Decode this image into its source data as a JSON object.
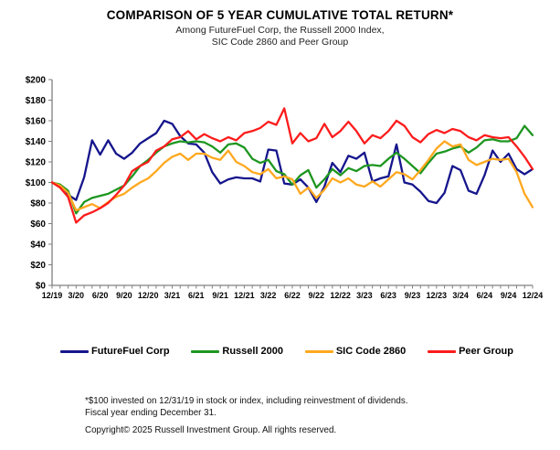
{
  "title": "COMPARISON OF 5 YEAR CUMULATIVE TOTAL RETURN*",
  "subtitle_line1": "Among FutureFuel Corp, the Russell 2000 Index,",
  "subtitle_line2": "SIC Code 2860 and Peer Group",
  "footnotes": {
    "line1": "*$100 invested on 12/31/19 in stock or index, including reinvestment of dividends.",
    "line2": "Fiscal year ending December 31.",
    "copyright": "Copyright© 2025 Russell Investment Group. All rights reserved."
  },
  "chart_data": {
    "type": "line",
    "title": "COMPARISON OF 5 YEAR CUMULATIVE TOTAL RETURN*",
    "x_tick_labels": [
      "12/19",
      "3/20",
      "6/20",
      "9/20",
      "12/20",
      "3/21",
      "6/21",
      "9/21",
      "12/21",
      "3/22",
      "6/22",
      "9/22",
      "12/22",
      "3/23",
      "6/23",
      "9/23",
      "12/23",
      "3/24",
      "6/24",
      "9/24",
      "12/24"
    ],
    "y_tick_labels": [
      "$200",
      "$180",
      "$160",
      "$140",
      "$120",
      "$100",
      "$80",
      "$60",
      "$40",
      "$20",
      "$0"
    ],
    "ylim": [
      0,
      200
    ],
    "y_tick_step": 20,
    "grid": false,
    "legend_position": "bottom",
    "x_resolution": "monthly",
    "points_per_series": 61,
    "axis_color": "#808080",
    "series": [
      {
        "name": "FutureFuel Corp",
        "color": "#15158C",
        "values": [
          100,
          96,
          88,
          83,
          105,
          141,
          127,
          141,
          128,
          123,
          129,
          138,
          143,
          148,
          160,
          157,
          145,
          138,
          137,
          129,
          110,
          99,
          103,
          105,
          104,
          104,
          101,
          132,
          131,
          99,
          98,
          103,
          95,
          81,
          96,
          119,
          110,
          126,
          123,
          129,
          101,
          104,
          106,
          137,
          100,
          98,
          91,
          82,
          80,
          90,
          116,
          112,
          92,
          89,
          107,
          131,
          120,
          128,
          113,
          108,
          113
        ]
      },
      {
        "name": "Russell 2000",
        "color": "#1E9620",
        "values": [
          100,
          98,
          92,
          70,
          81,
          85,
          87,
          89,
          93,
          97,
          106,
          116,
          122,
          129,
          135,
          138,
          140,
          139,
          140,
          139,
          135,
          129,
          137,
          138,
          134,
          123,
          119,
          122,
          111,
          108,
          98,
          107,
          112,
          95,
          103,
          113,
          107,
          114,
          111,
          116,
          117,
          116,
          123,
          129,
          123,
          116,
          109,
          119,
          128,
          130,
          133,
          135,
          129,
          134,
          141,
          142,
          140,
          140,
          143,
          155,
          146
        ]
      },
      {
        "name": "SIC Code 2860",
        "color": "#FFA81F",
        "values": [
          100,
          97,
          90,
          73,
          76,
          79,
          75,
          81,
          86,
          89,
          95,
          100,
          104,
          111,
          119,
          125,
          128,
          122,
          128,
          128,
          124,
          122,
          131,
          120,
          116,
          110,
          108,
          113,
          104,
          106,
          103,
          89,
          95,
          85,
          93,
          104,
          100,
          104,
          98,
          96,
          101,
          96,
          103,
          110,
          108,
          103,
          112,
          122,
          133,
          140,
          135,
          137,
          122,
          117,
          120,
          123,
          122,
          123,
          110,
          89,
          76
        ]
      },
      {
        "name": "Peer Group",
        "color": "#FC1C1C",
        "values": [
          100,
          95,
          86,
          61,
          68,
          71,
          75,
          80,
          88,
          97,
          111,
          116,
          120,
          131,
          135,
          142,
          144,
          150,
          142,
          147,
          143,
          140,
          144,
          141,
          148,
          150,
          153,
          159,
          156,
          172,
          138,
          148,
          140,
          143,
          157,
          144,
          150,
          159,
          150,
          138,
          146,
          143,
          150,
          160,
          155,
          144,
          139,
          147,
          151,
          148,
          152,
          150,
          144,
          141,
          146,
          144,
          143,
          144,
          135,
          125,
          113
        ]
      }
    ]
  }
}
